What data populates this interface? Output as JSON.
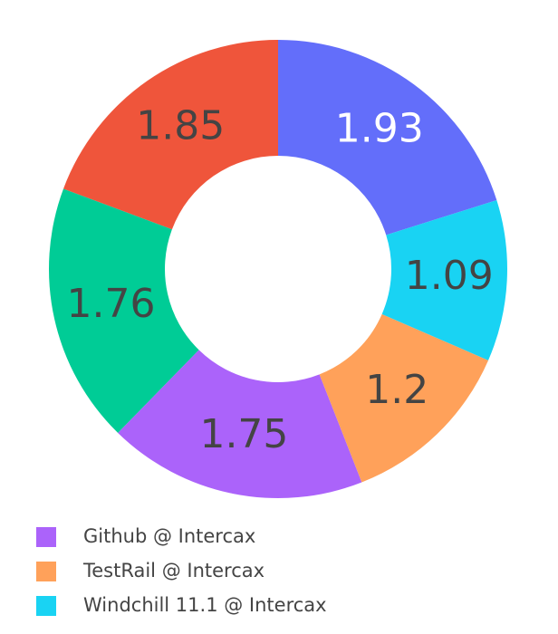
{
  "chart_data": {
    "type": "pie",
    "hole": true,
    "direction": "counterclockwise",
    "categories": [
      null,
      null,
      null,
      "Github @ Intercax",
      "TestRail @ Intercax",
      "Windchill 11.1 @ Intercax"
    ],
    "values": [
      1.93,
      1.85,
      1.76,
      1.75,
      1.2,
      1.09
    ],
    "colors": [
      "#636efa",
      "#ef553b",
      "#00cc96",
      "#ab63fa",
      "#ffa15a",
      "#19d3f3"
    ],
    "legend": "bottom-left"
  }
}
